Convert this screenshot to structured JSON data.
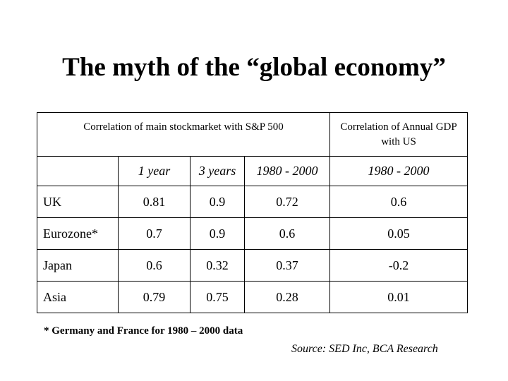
{
  "title": "The myth of the “global economy”",
  "table": {
    "group_header_1": "Correlation of main stockmarket with S&P 500",
    "group_header_2": "Correlation of Annual GDP with US",
    "subheaders": [
      "1 year",
      "3 years",
      "1980 - 2000",
      "1980 - 2000"
    ],
    "rows": [
      {
        "label": "UK",
        "values": [
          "0.81",
          "0.9",
          "0.72",
          "0.6"
        ]
      },
      {
        "label": "Eurozone*",
        "values": [
          "0.7",
          "0.9",
          "0.6",
          "0.05"
        ]
      },
      {
        "label": "Japan",
        "values": [
          "0.6",
          "0.32",
          "0.37",
          "-0.2"
        ]
      },
      {
        "label": "Asia",
        "values": [
          "0.79",
          "0.75",
          "0.28",
          "0.01"
        ]
      }
    ]
  },
  "footnote": "* Germany and France for 1980 – 2000 data",
  "source": "Source: SED Inc, BCA Research"
}
